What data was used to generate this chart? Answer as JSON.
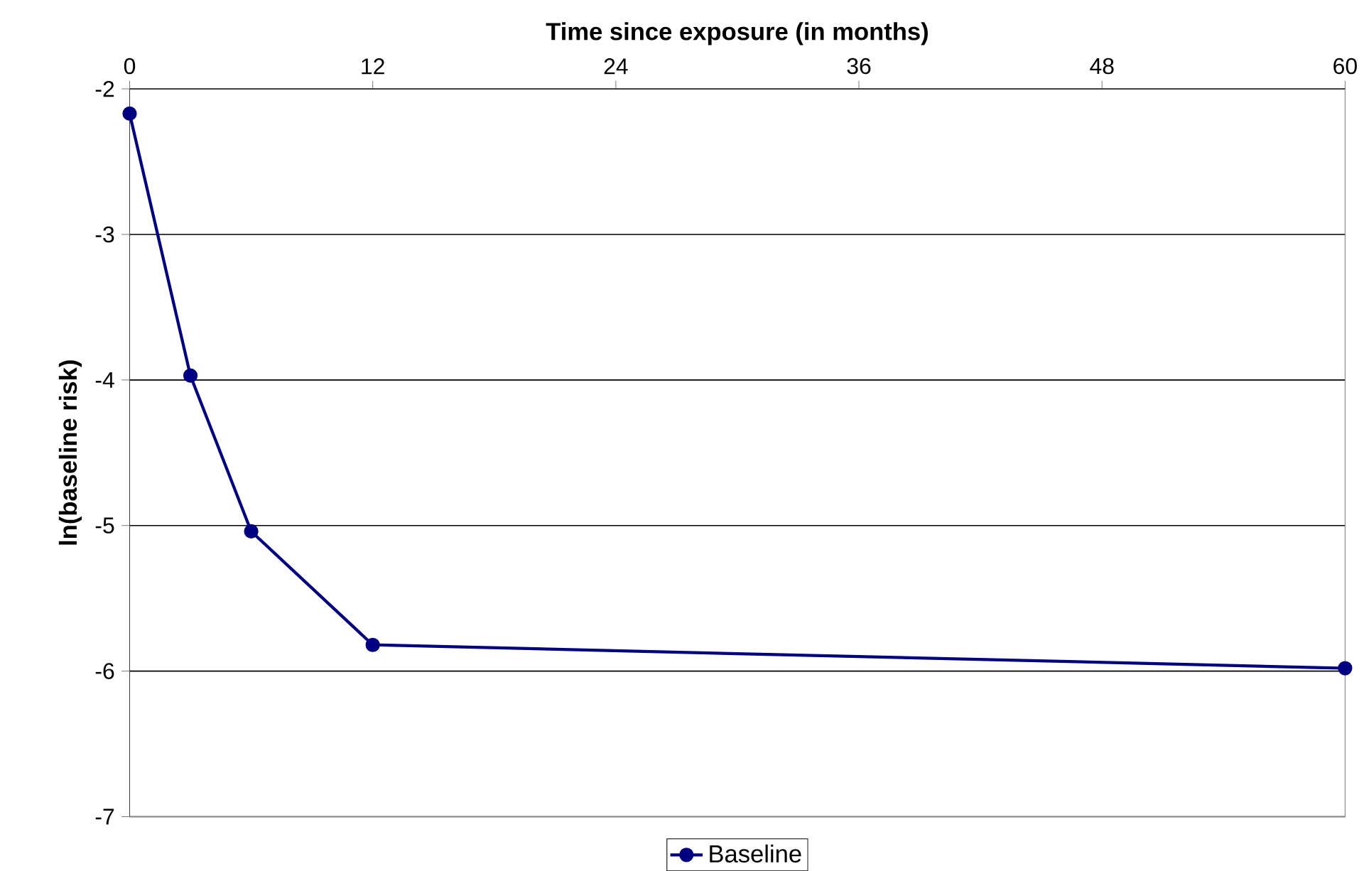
{
  "chart_data": {
    "type": "line",
    "xlabel": "Time since exposure (in months)",
    "ylabel": "ln(baseline risk)",
    "x": [
      0,
      3,
      6,
      12,
      60
    ],
    "series": [
      {
        "name": "Baseline",
        "color": "#000080",
        "values": [
          -2.17,
          -3.97,
          -5.04,
          -5.82,
          -5.98
        ]
      }
    ],
    "xlim": [
      0,
      60
    ],
    "xticks": [
      0,
      12,
      24,
      36,
      48,
      60
    ],
    "ylim": [
      -7,
      -2
    ],
    "yticks": [
      -7,
      -6,
      -5,
      -4,
      -3,
      -2
    ],
    "grid": "y",
    "legend": "bottom",
    "marker": "circle",
    "line_style": "solid"
  }
}
